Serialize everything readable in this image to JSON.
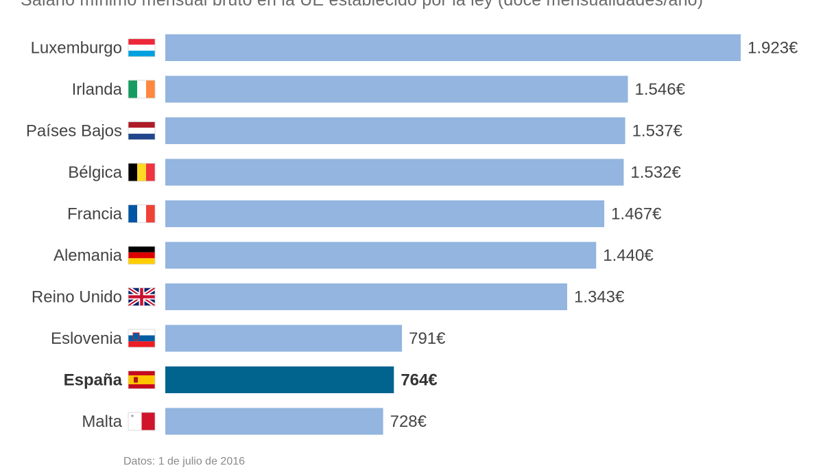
{
  "chart_data": {
    "type": "bar",
    "orientation": "horizontal",
    "title": "Salario mínimo mensual bruto en la UE establecido por la ley (doce mensualidades/año)",
    "footer": "Datos: 1 de julio de 2016",
    "categories": [
      "Luxemburgo",
      "Irlanda",
      "Países Bajos",
      "Bélgica",
      "Francia",
      "Alemania",
      "Reino Unido",
      "Eslovenia",
      "España",
      "Malta"
    ],
    "values": [
      1923,
      1546,
      1537,
      1532,
      1467,
      1440,
      1343,
      791,
      764,
      728
    ],
    "value_labels": [
      "1.923€",
      "1.546€",
      "1.537€",
      "1.532€",
      "1.467€",
      "1.440€",
      "1.343€",
      "791€",
      "764€",
      "728€"
    ],
    "flags": [
      "luxembourg-flag",
      "ireland-flag",
      "netherlands-flag",
      "belgium-flag",
      "france-flag",
      "germany-flag",
      "uk-flag",
      "slovenia-flag",
      "spain-flag",
      "malta-flag"
    ],
    "highlight": "España",
    "unit": "€",
    "xlim": [
      0,
      1923
    ],
    "grid": false,
    "colors": {
      "bar": "#93b5df",
      "highlight": "#00648f",
      "text": "#444444"
    }
  }
}
